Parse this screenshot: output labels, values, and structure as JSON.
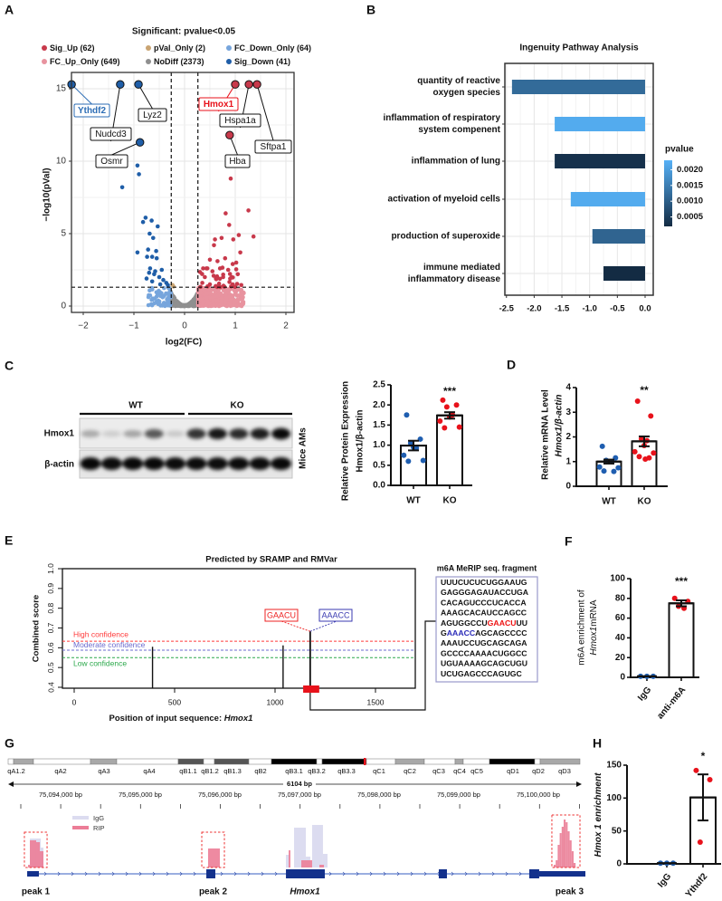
{
  "panel_labels": {
    "A": "A",
    "B": "B",
    "C": "C",
    "D": "D",
    "E": "E",
    "F": "F",
    "G": "G",
    "H": "H"
  },
  "chart_data": [
    {
      "id": "volcano",
      "type": "scatter",
      "title": "Significant: pvalue<0.05",
      "xlabel": "log2(FC)",
      "ylabel": "−log10(pVal)",
      "xlim": [
        -2.25,
        2.15
      ],
      "ylim": [
        -0.4,
        16
      ],
      "xticks": [
        "−2",
        "−1",
        "0",
        "1",
        "2"
      ],
      "xtick_values": [
        -2,
        -1,
        0,
        1,
        2
      ],
      "yticks": [
        "0",
        "5",
        "10",
        "15"
      ],
      "ytick_values": [
        0,
        5,
        10,
        15
      ],
      "fc_threshold": 0.263,
      "p_threshold_log": 1.301,
      "legend": [
        {
          "key": "sig_up",
          "label": "Sig_Up (62)",
          "color": "#c8394b"
        },
        {
          "key": "pval_only",
          "label": "pVal_Only (2)",
          "color": "#c9a472"
        },
        {
          "key": "fc_down_only",
          "label": "FC_Down_Only (64)",
          "color": "#76a5dc"
        },
        {
          "key": "fc_up_only",
          "label": "FC_Up_Only (649)",
          "color": "#e8939f"
        },
        {
          "key": "nodiff",
          "label": "NoDiff (2373)",
          "color": "#8f8f8f"
        },
        {
          "key": "sig_down",
          "label": "Sig_Down (41)",
          "color": "#1f5ea8"
        }
      ],
      "counts": {
        "sig_up": 62,
        "fc_up_only": 649,
        "pval_only": 2,
        "nodiff": 2373,
        "fc_down_only": 64,
        "sig_down": 41
      },
      "sig_down_points": [
        [
          -1.23,
          8.2
        ],
        [
          -0.93,
          9.7
        ],
        [
          -0.9,
          9.1
        ],
        [
          -0.77,
          6.1
        ],
        [
          -0.82,
          5.8
        ],
        [
          -0.65,
          5.9
        ],
        [
          -0.53,
          5.5
        ],
        [
          -0.69,
          5.0
        ],
        [
          -0.62,
          4.7
        ],
        [
          -0.93,
          3.7
        ],
        [
          -0.72,
          3.9
        ],
        [
          -0.56,
          3.8
        ],
        [
          -0.74,
          3.4
        ],
        [
          -0.64,
          3.4
        ],
        [
          -0.55,
          3.3
        ],
        [
          -0.68,
          2.6
        ],
        [
          -0.58,
          2.4
        ],
        [
          -0.45,
          2.5
        ],
        [
          -0.75,
          1.9
        ],
        [
          -0.64,
          1.7
        ],
        [
          -0.5,
          2.0
        ],
        [
          -0.42,
          1.8
        ],
        [
          -0.36,
          1.6
        ],
        [
          -0.6,
          2.2
        ],
        [
          -0.48,
          1.5
        ],
        [
          -0.33,
          1.45
        ],
        [
          -0.7,
          2.3
        ]
      ],
      "sig_up_points": [
        [
          0.91,
          8.8
        ],
        [
          0.81,
          6.4
        ],
        [
          1.26,
          6.6
        ],
        [
          0.88,
          5.6
        ],
        [
          1.36,
          4.8
        ],
        [
          1.07,
          4.9
        ],
        [
          0.96,
          4.6
        ],
        [
          0.73,
          4.7
        ],
        [
          0.6,
          4.6
        ],
        [
          0.58,
          4.2
        ],
        [
          1.1,
          3.7
        ],
        [
          0.5,
          3.2
        ],
        [
          0.65,
          3.1
        ],
        [
          0.8,
          3.3
        ],
        [
          0.95,
          2.9
        ],
        [
          1.02,
          3.0
        ],
        [
          0.7,
          2.6
        ],
        [
          0.86,
          2.5
        ],
        [
          0.55,
          2.4
        ],
        [
          0.45,
          2.6
        ],
        [
          1.05,
          2.2
        ],
        [
          0.9,
          1.9
        ],
        [
          0.4,
          2.0
        ],
        [
          0.62,
          1.9
        ],
        [
          0.76,
          2.0
        ],
        [
          0.35,
          1.6
        ],
        [
          0.5,
          1.5
        ],
        [
          0.68,
          1.55
        ],
        [
          0.95,
          1.5
        ],
        [
          1.12,
          1.45
        ]
      ],
      "labeled_genes": [
        {
          "gene": "Ythdf2",
          "x": -2.23,
          "y": 15.3,
          "group": "down",
          "highlight": true
        },
        {
          "gene": "Nudcd3",
          "x": -1.27,
          "y": 15.3,
          "group": "down"
        },
        {
          "gene": "Lyz2",
          "x": -0.91,
          "y": 15.3,
          "group": "down"
        },
        {
          "gene": "Osmr",
          "x": -0.88,
          "y": 11.3,
          "group": "down"
        },
        {
          "gene": "Hmox1",
          "x": 1.0,
          "y": 15.3,
          "group": "up",
          "highlight": true
        },
        {
          "gene": "Hspa1a",
          "x": 1.27,
          "y": 15.3,
          "group": "up"
        },
        {
          "gene": "Sftpa1",
          "x": 1.43,
          "y": 15.3,
          "group": "up"
        },
        {
          "gene": "Hba",
          "x": 0.89,
          "y": 11.8,
          "group": "up"
        }
      ]
    },
    {
      "id": "ipa",
      "type": "bar",
      "orientation": "horizontal",
      "title": "Ingenuity Pathway Analysis",
      "categories": [
        [
          "quantity of reactive",
          "oxygen species"
        ],
        [
          "inflammation of respiratory",
          "system compenent"
        ],
        [
          "inflammation of lung"
        ],
        [
          "activation of myeloid cells"
        ],
        [
          "production of superoxide"
        ],
        [
          "immune mediated",
          "inflammatory disease"
        ]
      ],
      "values": [
        -2.4,
        -1.63,
        -1.63,
        -1.34,
        -0.95,
        -0.75
      ],
      "pvalues": [
        0.0012,
        0.0022,
        0.0003,
        0.0022,
        0.0011,
        0.0002
      ],
      "xlim": [
        -2.55,
        0.15
      ],
      "xticks": [
        "-2.5",
        "-2.0",
        "-1.5",
        "-1.0",
        "-0.5",
        "0.0"
      ],
      "xtick_values": [
        -2.5,
        -2.0,
        -1.5,
        -1.0,
        -0.5,
        0.0
      ],
      "legend_title": "pvalue",
      "legend_ticks": [
        "0.0020",
        "0.0015",
        "0.0010",
        "0.0005"
      ],
      "legend_tick_values": [
        0.002,
        0.0015,
        0.001,
        0.0005
      ],
      "color_low": "#132b43",
      "color_high": "#56b1f7",
      "p_range": [
        0.0002,
        0.0023
      ]
    },
    {
      "id": "western",
      "type": "table",
      "groups": [
        "WT",
        "KO"
      ],
      "rows": [
        "Hmox1",
        "β-actin"
      ],
      "side_label": "Mice AMs",
      "hmox1_band_intensity": [
        0.28,
        0.13,
        0.3,
        0.62,
        0.15,
        0.78,
        0.9,
        0.82,
        0.88,
        0.96
      ],
      "actin_band_intensity": [
        0.97,
        0.95,
        0.96,
        0.96,
        0.95,
        0.95,
        0.94,
        0.95,
        0.95,
        0.96
      ]
    },
    {
      "id": "protein_bar",
      "type": "bar",
      "ylabel_lines": [
        "Relative Protein Expression",
        "Hmox1/β-actin"
      ],
      "categories": [
        "WT",
        "KO"
      ],
      "ylim": [
        0,
        2.5
      ],
      "yticks": [
        "0.0",
        "0.5",
        "1.0",
        "1.5",
        "2.0",
        "2.5"
      ],
      "ytick_values": [
        0,
        0.5,
        1,
        1.5,
        2,
        2.5
      ],
      "series": [
        {
          "name": "WT",
          "mean": 0.99,
          "sem": 0.12,
          "color": "#1f5eb0",
          "points": [
            1.75,
            1.15,
            1.05,
            0.93,
            0.95,
            0.75,
            0.62,
            0.6
          ]
        },
        {
          "name": "KO",
          "mean": 1.74,
          "sem": 0.08,
          "color": "#e8121b",
          "points": [
            2.12,
            2.0,
            1.95,
            1.75,
            1.7,
            1.6,
            1.45,
            1.43
          ]
        }
      ],
      "significance": "***"
    },
    {
      "id": "mrna_bar",
      "type": "bar",
      "ylabel_lines": [
        "Relative mRNA Level",
        "Hmox1/β-actin"
      ],
      "categories": [
        "WT",
        "KO"
      ],
      "ylim": [
        0,
        4
      ],
      "yticks": [
        "0",
        "1",
        "2",
        "3",
        "4"
      ],
      "ytick_values": [
        0,
        1,
        2,
        3,
        4
      ],
      "series": [
        {
          "name": "WT",
          "mean": 1.0,
          "sem": 0.08,
          "color": "#1f5eb0",
          "points": [
            1.62,
            1.15,
            1.05,
            1.0,
            1.0,
            0.78,
            0.75,
            0.62,
            0.6
          ]
        },
        {
          "name": "KO",
          "mean": 1.82,
          "sem": 0.2,
          "color": "#e8121b",
          "points": [
            3.45,
            2.85,
            1.92,
            1.85,
            1.65,
            1.4,
            1.35,
            1.2,
            1.15,
            1.1
          ]
        }
      ],
      "significance": "**"
    },
    {
      "id": "m6a_sites",
      "type": "bar",
      "title": "Predicted by SRAMP and RMVar",
      "ylabel": "Combined score",
      "xlabel_prefix": "Position of input sequence: ",
      "xlabel_gene": "Hmox1",
      "xlim": [
        -40,
        1720
      ],
      "ylim": [
        0.4,
        1.0
      ],
      "xticks": [
        "0",
        "500",
        "1000",
        "1500"
      ],
      "xtick_values": [
        0,
        500,
        1000,
        1500
      ],
      "yticks": [
        "0.4",
        "0.5",
        "0.6",
        "0.7",
        "0.8",
        "0.9",
        "1.0"
      ],
      "ytick_values": [
        0.4,
        0.5,
        0.6,
        0.7,
        0.8,
        0.9,
        1.0
      ],
      "sites": [
        {
          "position": 390,
          "score": 0.605
        },
        {
          "position": 1040,
          "score": 0.612
        },
        {
          "position": 1175,
          "score": 0.683
        }
      ],
      "thresholds": [
        {
          "label": "High confidence",
          "value": 0.633,
          "color": "#ff3b3b"
        },
        {
          "label": "Moderate confidence",
          "value": 0.588,
          "color": "#6b6bcf"
        },
        {
          "label": "Low confidence",
          "value": 0.55,
          "color": "#2aa84a"
        }
      ],
      "motifs": [
        {
          "text": "GAACU",
          "color": "#ee2222"
        },
        {
          "text": "AAACC",
          "color": "#3a3ab0"
        }
      ],
      "fragment_region": [
        1140,
        1220
      ],
      "fragment_title": "m6A MeRIP seq. fragment",
      "fragment_lines": [
        [
          {
            "t": "UUUCUCUCUGGAAUG"
          }
        ],
        [
          {
            "t": "GAGGGAGAUACCUGA"
          }
        ],
        [
          {
            "t": "CACAGUCCCUCACCA"
          }
        ],
        [
          {
            "t": "AAAGCACAUCCAGCC"
          }
        ],
        [
          {
            "t": "AGUGGCCU"
          },
          {
            "t": "GAACU",
            "c": "#ee1111"
          },
          {
            "t": "UU"
          }
        ],
        [
          {
            "t": "G"
          },
          {
            "t": "AAACC",
            "c": "#2a2ab8"
          },
          {
            "t": "AGCAGCCCC"
          }
        ],
        [
          {
            "t": "AAAUCCUGCAGCAGA"
          }
        ],
        [
          {
            "t": "GCCCCAAAACUGGCC"
          }
        ],
        [
          {
            "t": "UGUAAAAGCAGCUGU"
          }
        ],
        [
          {
            "t": "UCUGAGCCCAGUGC"
          }
        ]
      ]
    },
    {
      "id": "merip_bar",
      "type": "bar",
      "ylabel_lines": [
        "m6A enrichment of",
        "Hmox1",
        "mRNA"
      ],
      "categories": [
        "IgG",
        "anti-m6A"
      ],
      "ylim": [
        0,
        100
      ],
      "yticks": [
        "0",
        "20",
        "40",
        "60",
        "80",
        "100"
      ],
      "ytick_values": [
        0,
        20,
        40,
        60,
        80,
        100
      ],
      "series": [
        {
          "name": "IgG",
          "mean": 1,
          "sem": 0,
          "color": "#1f5eb0",
          "points": [
            1,
            1,
            1
          ],
          "bar": false
        },
        {
          "name": "anti-m6A",
          "mean": 75,
          "sem": 3,
          "color": "#e8121b",
          "points": [
            80,
            77,
            72,
            70
          ],
          "bar": true
        }
      ],
      "significance": "***"
    },
    {
      "id": "rip_track",
      "type": "area",
      "ideogram": [
        {
          "band": "",
          "s": "w"
        },
        {
          "band": "qA1.2",
          "s": "g"
        },
        {
          "band": "qA2",
          "s": "w"
        },
        {
          "band": "qA3",
          "s": "g"
        },
        {
          "band": "qA4",
          "s": "w"
        },
        {
          "band": "qB1.1",
          "s": "d"
        },
        {
          "band": "qB1.2",
          "s": "w"
        },
        {
          "band": "qB1.3",
          "s": "d"
        },
        {
          "band": "qB2",
          "s": "w"
        },
        {
          "band": "qB3.1",
          "s": "k"
        },
        {
          "band": "qB3.2",
          "s": "w"
        },
        {
          "band": "qB3.3",
          "s": "k"
        },
        {
          "band": "qC1",
          "s": "w"
        },
        {
          "band": "qC2",
          "s": "g"
        },
        {
          "band": "qC3",
          "s": "w"
        },
        {
          "band": "qC4",
          "s": "g"
        },
        {
          "band": "qC5",
          "s": "w"
        },
        {
          "band": "qD1",
          "s": "k"
        },
        {
          "band": "qD2",
          "s": "w"
        },
        {
          "band": "qD3",
          "s": "g"
        }
      ],
      "span_label": "6104 bp",
      "coordinates": [
        "75,094,000 bp",
        "75,095,000 bp",
        "75,096,000 bp",
        "75,097,000 bp",
        "75,098,000 bp",
        "75,099,000 bp",
        "75,100,000 bp"
      ],
      "coordinate_values": [
        75094000,
        75095000,
        75096000,
        75097000,
        75098000,
        75099000,
        75100000
      ],
      "legend": [
        {
          "label": "IgG",
          "color": "#dcdcf0"
        },
        {
          "label": "RIP",
          "color": "#ec7d97"
        }
      ],
      "igg_segments": [
        [
          75093614,
          75093750,
          32
        ],
        [
          75093750,
          75093784,
          22
        ],
        [
          75096830,
          75096875,
          14
        ],
        [
          75096932,
          75097080,
          44
        ],
        [
          75097080,
          75097136,
          12
        ],
        [
          75097159,
          75097295,
          47
        ],
        [
          75097295,
          75097352,
          15
        ]
      ],
      "rip_segments": [
        [
          75093591,
          75093614,
          3
        ],
        [
          75093614,
          75093693,
          30
        ],
        [
          75093693,
          75093739,
          28
        ],
        [
          75093739,
          75093784,
          18
        ],
        [
          75095852,
          75096000,
          21
        ],
        [
          75096864,
          75096886,
          19
        ],
        [
          75097023,
          75097159,
          8
        ],
        [
          75097250,
          75097307,
          3
        ]
      ],
      "peak3_start": 75100193,
      "peak3_bin_bp": 25,
      "peak3_rip": [
        3,
        8,
        25,
        38,
        45,
        53,
        50,
        40,
        30,
        18,
        5
      ],
      "exons": [
        [
          75093580,
          75093727
        ],
        [
          75095830,
          75095943
        ],
        [
          75096830,
          75097318
        ],
        [
          75098750,
          75098852
        ],
        [
          75099886,
          75100011
        ]
      ],
      "utr": [
        75100011,
        75100591
      ],
      "intron": [
        75093580,
        75100591
      ],
      "peaks": [
        {
          "label": "peak 1",
          "range": [
            75093545,
            75093830
          ]
        },
        {
          "label": "peak 2",
          "range": [
            75095773,
            75096057
          ]
        },
        {
          "label": "peak 3",
          "range": [
            75100170,
            75100523
          ]
        }
      ],
      "gene_label": "Hmox1"
    },
    {
      "id": "ythdf2_rip_bar",
      "type": "bar",
      "ylabel_gene": "Hmox 1",
      "ylabel_rest": " enrichment",
      "categories": [
        "IgG",
        "Ythdf2"
      ],
      "ylim": [
        0,
        150
      ],
      "yticks": [
        "0",
        "50",
        "100",
        "150"
      ],
      "ytick_values": [
        0,
        50,
        100,
        150
      ],
      "series": [
        {
          "name": "IgG",
          "mean": 1,
          "sem": 0,
          "color": "#1f5eb0",
          "points": [
            1,
            1,
            1
          ],
          "bar": false
        },
        {
          "name": "Ythdf2",
          "mean": 101,
          "sem": 35,
          "color": "#e8121b",
          "points": [
            142,
            128,
            33
          ],
          "bar": true
        }
      ],
      "significance": "*"
    }
  ]
}
